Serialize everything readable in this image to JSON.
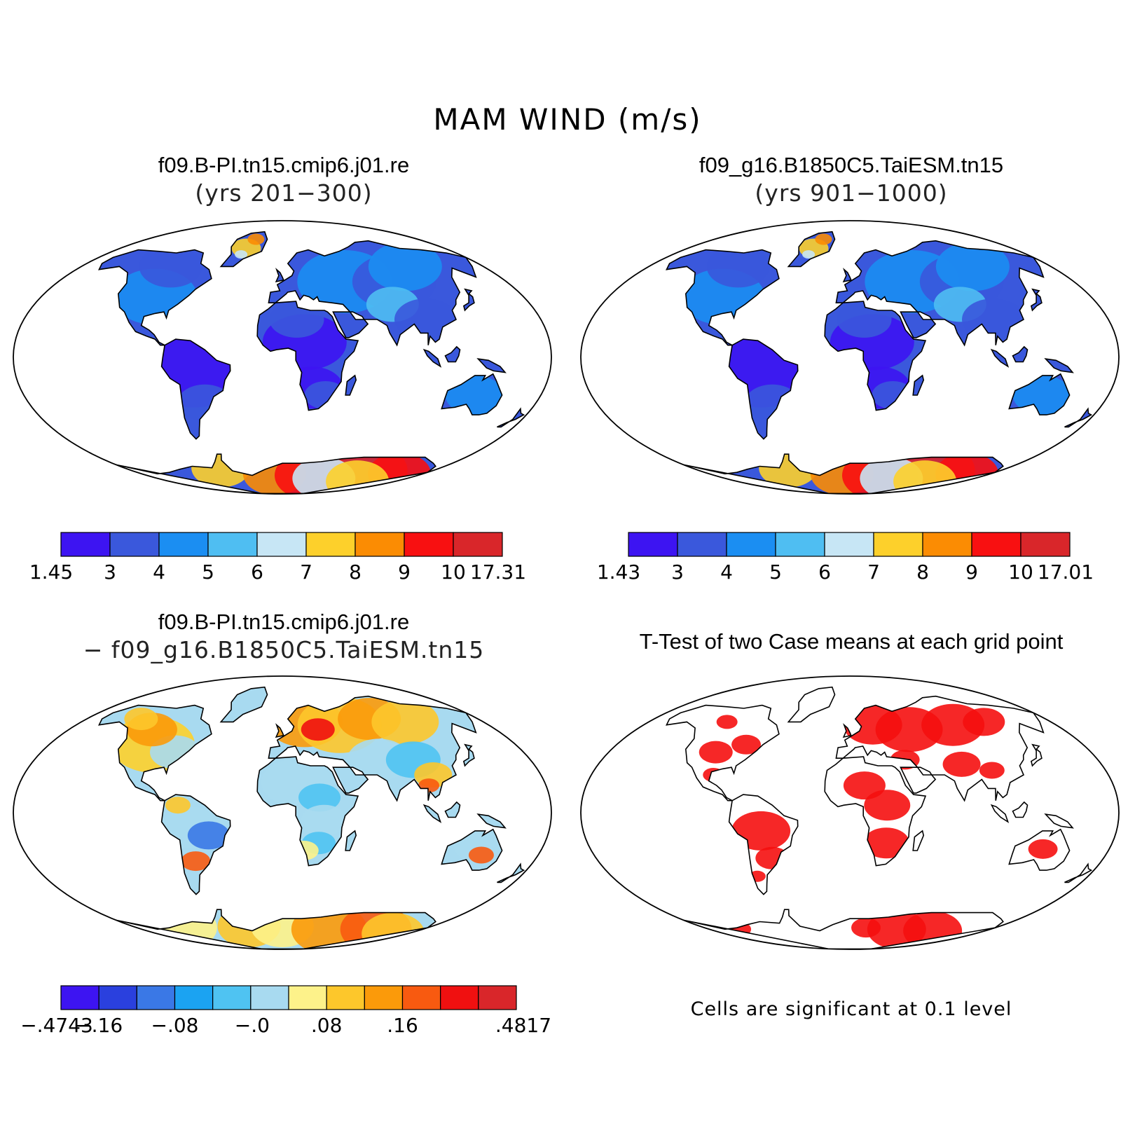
{
  "figure": {
    "title": "MAM WIND (m/s)"
  },
  "panels": {
    "top_left": {
      "title": "f09.B-PI.tn15.cmip6.j01.re",
      "subtitle": "(yrs 201−300)",
      "colorbar": {
        "labels": [
          "1.45",
          "3",
          "4",
          "5",
          "6",
          "7",
          "8",
          "9",
          "10",
          "17.31"
        ],
        "colors": [
          "#3d14f2",
          "#3a58dc",
          "#1b8ef2",
          "#4fbef2",
          "#c7e6f5",
          "#fdd02b",
          "#fb8c03",
          "#f81011",
          "#d9262a"
        ]
      }
    },
    "top_right": {
      "title": "f09_g16.B1850C5.TaiESM.tn15",
      "subtitle": "(yrs 901−1000)",
      "colorbar": {
        "labels": [
          "1.43",
          "3",
          "4",
          "5",
          "6",
          "7",
          "8",
          "9",
          "10",
          "17.01"
        ],
        "colors": [
          "#3d14f2",
          "#3a58dc",
          "#1b8ef2",
          "#4fbef2",
          "#c7e6f5",
          "#fdd02b",
          "#fb8c03",
          "#f81011",
          "#d9262a"
        ]
      }
    },
    "bottom_left": {
      "title": "f09.B-PI.tn15.cmip6.j01.re",
      "subtitle": "− f09_g16.B1850C5.TaiESM.tn15",
      "colorbar": {
        "labels": [
          "−.4743",
          "−.16",
          "−.08",
          "−.0",
          ".08",
          ".16",
          ".4817"
        ],
        "colors": [
          "#3d14f2",
          "#2a40de",
          "#3a78e6",
          "#1ba3f2",
          "#4fc3f2",
          "#a8daf0",
          "#fdf28a",
          "#fdc72b",
          "#fb9a0a",
          "#f85a10",
          "#f01010",
          "#d9262a"
        ]
      }
    },
    "bottom_right": {
      "title": "T-Test of two Case means at each grid point",
      "note": "Cells are significant at 0.1 level",
      "fill_color": "#f50f0f"
    }
  }
}
